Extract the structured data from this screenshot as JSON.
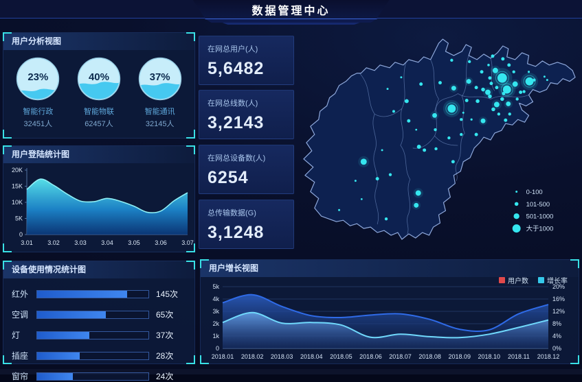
{
  "header": {
    "title": "数据管理中心"
  },
  "colors": {
    "accent_cyan": "#39e0e6",
    "map_dot": "#35e6ef",
    "bar_fill": "#2e6fdb",
    "legend_users": "#e0494b",
    "legend_growth": "#35c8ea"
  },
  "stats": [
    {
      "label": "在网总用户(人)",
      "value": "5,6482"
    },
    {
      "label": "在网总线数(人)",
      "value": "3,2143"
    },
    {
      "label": "在网总设备数(人)",
      "value": "6254"
    },
    {
      "label": "总传输数据(G)",
      "value": "3,1248"
    }
  ],
  "chart_data": [
    {
      "id": "user_analysis",
      "type": "gauge",
      "title": "用户分析视图",
      "items": [
        {
          "label": "智能行政",
          "pct": 23,
          "pct_text": "23%",
          "count": "32451人"
        },
        {
          "label": "智能物联",
          "pct": 40,
          "pct_text": "40%",
          "count": "62457人"
        },
        {
          "label": "智能通讯",
          "pct": 37,
          "pct_text": "37%",
          "count": "32145人"
        }
      ]
    },
    {
      "id": "login",
      "type": "area",
      "title": "用户登陆统计图",
      "xticks": [
        "3.01",
        "3.02",
        "3.03",
        "3.04",
        "3.05",
        "3.06",
        "3.07"
      ],
      "yticks": [
        "0",
        "5K",
        "10K",
        "15K",
        "20K"
      ],
      "ylim": [
        0,
        20
      ],
      "unit": "K",
      "points_per_tick": 2,
      "values": [
        14,
        17.2,
        15.3,
        12.6,
        10.4,
        10.2,
        11.2,
        10.3,
        8.8,
        6.9,
        7.3,
        10.5,
        13
      ]
    },
    {
      "id": "device",
      "type": "bar",
      "title": "设备使用情况统计图",
      "categories": [
        "红外",
        "空调",
        "灯",
        "插座",
        "窗帘"
      ],
      "values": [
        145,
        65,
        37,
        28,
        24
      ],
      "value_labels": [
        "145次",
        "65次",
        "37次",
        "28次",
        "24次"
      ],
      "unit": "次",
      "bar_pct": [
        81,
        62,
        47,
        38,
        32
      ]
    },
    {
      "id": "growth",
      "type": "area",
      "title": "用户增长视图",
      "categories": [
        "2018.01",
        "2018.02",
        "2018.03",
        "2018.04",
        "2018.05",
        "2018.06",
        "2018.07",
        "2018.08",
        "2018.09",
        "2018.10",
        "2018.11",
        "2018.12"
      ],
      "yticks_left": [
        "0",
        "1k",
        "2k",
        "3k",
        "4k",
        "5k"
      ],
      "yticks_right": [
        "0%",
        "4%",
        "8%",
        "12%",
        "16%",
        "20%"
      ],
      "ylim_left": [
        0,
        5
      ],
      "ylim_right": [
        0,
        20
      ],
      "grid": true,
      "legend_position": "top-right",
      "series": [
        {
          "name": "用户数",
          "axis": "left",
          "legend_color": "#e0494b",
          "line_color": "#2f6be8",
          "values_k": [
            3.7,
            4.35,
            3.4,
            2.65,
            2.5,
            2.7,
            2.8,
            2.35,
            1.55,
            1.5,
            2.8,
            3.55
          ]
        },
        {
          "name": "增长率",
          "axis": "right",
          "legend_color": "#35c8ea",
          "line_color": "#70d9fc",
          "values_pct": [
            8.4,
            11.6,
            8.2,
            8.4,
            7.6,
            3.6,
            4.6,
            3.8,
            3.5,
            4.6,
            6.8,
            9.2
          ]
        }
      ]
    },
    {
      "id": "map_scatter",
      "type": "scatter",
      "title": "",
      "dot_color": "#35e6ef",
      "legend": [
        {
          "label": "0-100",
          "r": 1.5
        },
        {
          "label": "101-500",
          "r": 2.8
        },
        {
          "label": "501-1000",
          "r": 4.2
        },
        {
          "label": "大于1000",
          "r": 6
        }
      ],
      "points": [
        [
          303,
          73,
          7
        ],
        [
          343,
          78,
          6
        ],
        [
          310,
          90,
          6
        ],
        [
          229,
          118,
          6
        ],
        [
          293,
          62,
          4
        ],
        [
          322,
          82,
          4
        ],
        [
          282,
          94,
          4
        ],
        [
          295,
          112,
          4
        ],
        [
          100,
          196,
          4.5
        ],
        [
          180,
          242,
          4
        ],
        [
          177,
          260,
          3.5
        ],
        [
          204,
          128,
          3.5
        ],
        [
          275,
          136,
          3.5
        ],
        [
          312,
          111,
          3.5
        ],
        [
          254,
          78,
          3.5
        ],
        [
          232,
          88,
          3.5
        ],
        [
          181,
          174,
          3
        ],
        [
          163,
          107,
          3
        ],
        [
          184,
          82,
          2.5
        ],
        [
          212,
          80,
          2.5
        ],
        [
          267,
          107,
          2.8
        ],
        [
          285,
          100,
          2.8
        ],
        [
          275,
          90,
          2.8
        ],
        [
          290,
          119,
          2.8
        ],
        [
          303,
          104,
          2.8
        ],
        [
          330,
          94,
          2.5
        ],
        [
          313,
          54,
          2.5
        ],
        [
          304,
          45,
          2.5
        ],
        [
          289,
          41,
          2.5
        ],
        [
          265,
          87,
          2.5
        ],
        [
          295,
          87,
          2.5
        ],
        [
          305,
          96,
          2.5
        ],
        [
          287,
          81,
          2.5
        ],
        [
          273,
          64,
          2.5
        ],
        [
          285,
          73,
          2.5
        ],
        [
          308,
          135,
          2.5
        ],
        [
          251,
          106,
          2.5
        ],
        [
          166,
          136,
          2.5
        ],
        [
          189,
          179,
          2.5
        ],
        [
          120,
          221,
          2.5
        ],
        [
          231,
          196,
          2.5
        ],
        [
          265,
          156,
          2.5
        ],
        [
          243,
          134,
          2.2
        ],
        [
          320,
          64,
          2.2
        ],
        [
          350,
          76,
          2.2
        ],
        [
          335,
          93,
          2.2
        ],
        [
          325,
          104,
          2.2
        ],
        [
          314,
          126,
          2.2
        ],
        [
          298,
          126,
          2.2
        ],
        [
          255,
          49,
          2.2
        ],
        [
          229,
          47,
          2.2
        ],
        [
          139,
          215,
          2.2
        ],
        [
          133,
          280,
          2.2
        ],
        [
          243,
          156,
          2.2
        ],
        [
          225,
          161,
          2.2
        ],
        [
          205,
          149,
          2.2
        ],
        [
          206,
          177,
          2.2
        ],
        [
          144,
          122,
          2
        ],
        [
          365,
          71,
          1.5
        ],
        [
          369,
          76,
          1.5
        ],
        [
          283,
          54,
          1.8
        ],
        [
          88,
          224,
          1.5
        ],
        [
          64,
          267,
          1.5
        ],
        [
          127,
          179,
          1.5
        ],
        [
          155,
          72,
          1.5
        ],
        [
          135,
          89,
          1.5
        ],
        [
          246,
          124,
          1.5
        ],
        [
          258,
          134,
          1.6
        ],
        [
          177,
          149,
          1.4
        ],
        [
          97,
          251,
          1.4
        ],
        [
          342,
          64,
          1.6
        ]
      ]
    }
  ]
}
